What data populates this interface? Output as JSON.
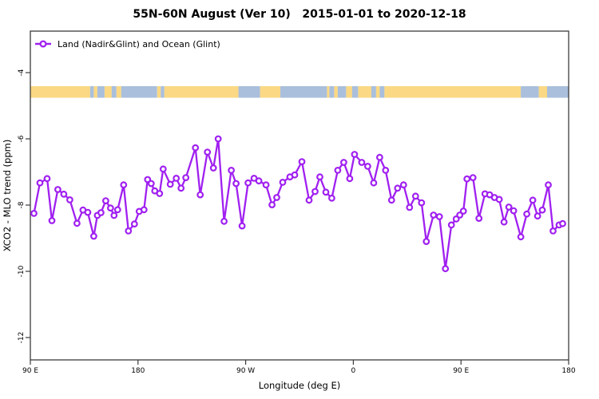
{
  "chart_data": {
    "type": "line",
    "title": "55N-60N August (Ver 10)   2015-01-01 to 2020-12-18",
    "xlabel": "Longitude (deg E)",
    "ylabel": "XCO2 - MLO trend (ppm)",
    "legend": [
      "Land (Nadir&Glint) and Ocean (Glint)"
    ],
    "legend_position": "top-left",
    "grid": false,
    "colors": {
      "series": "#A020F0",
      "marker_fill": "#FFFFFF",
      "land": "#FAD884",
      "ocean": "#A9BFDC",
      "axis": "#3b3b3b",
      "background": "#FFFFFF"
    },
    "x_axis": {
      "units": "degrees east, wrapping across dateline (spans 450 deg)",
      "plot_range": [
        90,
        540
      ],
      "ticks": [
        {
          "deg": 90,
          "label": "90 E"
        },
        {
          "deg": 180,
          "label": "180"
        },
        {
          "deg": 270,
          "label": "90 W"
        },
        {
          "deg": 360,
          "label": "0"
        },
        {
          "deg": 450,
          "label": "90 E"
        },
        {
          "deg": 540,
          "label": "180"
        }
      ]
    },
    "y_axis": {
      "plot_range": [
        -12.7,
        -2.75
      ],
      "ticks": [
        {
          "value": -4,
          "label": "-4"
        },
        {
          "value": -6,
          "label": "-6"
        },
        {
          "value": -8,
          "label": "-8"
        },
        {
          "value": -10,
          "label": "-10"
        },
        {
          "value": -12,
          "label": "-12"
        }
      ]
    },
    "map_strip": {
      "description": "55N-60N latitude-band land/ocean map strip",
      "y_top_value": -4.41,
      "y_bottom_value": -4.76,
      "segments": [
        [
          90,
          140,
          "land"
        ],
        [
          140,
          143,
          "ocean"
        ],
        [
          143,
          146,
          "land"
        ],
        [
          146,
          152,
          "ocean"
        ],
        [
          152,
          158,
          "land"
        ],
        [
          158,
          162,
          "ocean"
        ],
        [
          162,
          166,
          "land"
        ],
        [
          166,
          196,
          "ocean"
        ],
        [
          196,
          199,
          "land"
        ],
        [
          199,
          202,
          "ocean"
        ],
        [
          202,
          264,
          "land"
        ],
        [
          264,
          282,
          "ocean"
        ],
        [
          282,
          299,
          "land"
        ],
        [
          299,
          338,
          "ocean"
        ],
        [
          338,
          340,
          "land"
        ],
        [
          340,
          344,
          "ocean"
        ],
        [
          344,
          347,
          "land"
        ],
        [
          347,
          354,
          "ocean"
        ],
        [
          354,
          359,
          "land"
        ],
        [
          359,
          364,
          "ocean"
        ],
        [
          364,
          375,
          "land"
        ],
        [
          375,
          379,
          "ocean"
        ],
        [
          379,
          382,
          "land"
        ],
        [
          382,
          386,
          "ocean"
        ],
        [
          386,
          500,
          "land"
        ],
        [
          500,
          515,
          "ocean"
        ],
        [
          515,
          522,
          "land"
        ],
        [
          522,
          540,
          "ocean"
        ]
      ]
    },
    "series": [
      {
        "name": "Land (Nadir&Glint) and Ocean (Glint)",
        "marker": "open-circle",
        "points": [
          [
            93,
            -8.25
          ],
          [
            98,
            -7.33
          ],
          [
            104,
            -7.2
          ],
          [
            108,
            -8.47
          ],
          [
            113,
            -7.53
          ],
          [
            118,
            -7.67
          ],
          [
            123,
            -7.84
          ],
          [
            129,
            -8.55
          ],
          [
            134,
            -8.15
          ],
          [
            138,
            -8.22
          ],
          [
            143,
            -8.94
          ],
          [
            146,
            -8.31
          ],
          [
            149,
            -8.23
          ],
          [
            153,
            -7.87
          ],
          [
            157,
            -8.09
          ],
          [
            160,
            -8.31
          ],
          [
            163,
            -8.14
          ],
          [
            168,
            -7.39
          ],
          [
            172,
            -8.78
          ],
          [
            177,
            -8.57
          ],
          [
            181,
            -8.19
          ],
          [
            185,
            -8.14
          ],
          [
            188,
            -7.23
          ],
          [
            191,
            -7.35
          ],
          [
            194,
            -7.57
          ],
          [
            198,
            -7.65
          ],
          [
            201,
            -6.91
          ],
          [
            207,
            -7.37
          ],
          [
            212,
            -7.19
          ],
          [
            216,
            -7.49
          ],
          [
            220,
            -7.17
          ],
          [
            228,
            -6.27
          ],
          [
            232,
            -7.69
          ],
          [
            238,
            -6.4
          ],
          [
            243,
            -6.88
          ],
          [
            247,
            -6.0
          ],
          [
            252,
            -8.49
          ],
          [
            258,
            -6.95
          ],
          [
            262,
            -7.35
          ],
          [
            267,
            -8.63
          ],
          [
            272,
            -7.33
          ],
          [
            277,
            -7.19
          ],
          [
            281,
            -7.27
          ],
          [
            287,
            -7.39
          ],
          [
            292,
            -7.99
          ],
          [
            296,
            -7.77
          ],
          [
            301,
            -7.31
          ],
          [
            307,
            -7.15
          ],
          [
            311,
            -7.09
          ],
          [
            317,
            -6.69
          ],
          [
            323,
            -7.85
          ],
          [
            328,
            -7.59
          ],
          [
            332,
            -7.15
          ],
          [
            337,
            -7.61
          ],
          [
            342,
            -7.79
          ],
          [
            347,
            -6.95
          ],
          [
            352,
            -6.71
          ],
          [
            357,
            -7.2
          ],
          [
            361,
            -6.47
          ],
          [
            367,
            -6.71
          ],
          [
            372,
            -6.83
          ],
          [
            377,
            -7.33
          ],
          [
            382,
            -6.56
          ],
          [
            387,
            -6.95
          ],
          [
            392,
            -7.85
          ],
          [
            397,
            -7.49
          ],
          [
            402,
            -7.39
          ],
          [
            407,
            -8.07
          ],
          [
            412,
            -7.73
          ],
          [
            417,
            -7.93
          ],
          [
            421,
            -9.1
          ],
          [
            427,
            -8.3
          ],
          [
            432,
            -8.35
          ],
          [
            437,
            -9.92
          ],
          [
            442,
            -8.6
          ],
          [
            446,
            -8.42
          ],
          [
            449,
            -8.3
          ],
          [
            452,
            -8.18
          ],
          [
            455,
            -7.21
          ],
          [
            460,
            -7.17
          ],
          [
            465,
            -8.4
          ],
          [
            470,
            -7.66
          ],
          [
            474,
            -7.69
          ],
          [
            478,
            -7.77
          ],
          [
            482,
            -7.83
          ],
          [
            486,
            -8.51
          ],
          [
            490,
            -8.06
          ],
          [
            494,
            -8.17
          ],
          [
            500,
            -8.96
          ],
          [
            505,
            -8.27
          ],
          [
            510,
            -7.85
          ],
          [
            514,
            -8.33
          ],
          [
            518,
            -8.15
          ],
          [
            523,
            -7.39
          ],
          [
            527,
            -8.78
          ],
          [
            532,
            -8.6
          ],
          [
            535,
            -8.56
          ]
        ]
      }
    ]
  }
}
